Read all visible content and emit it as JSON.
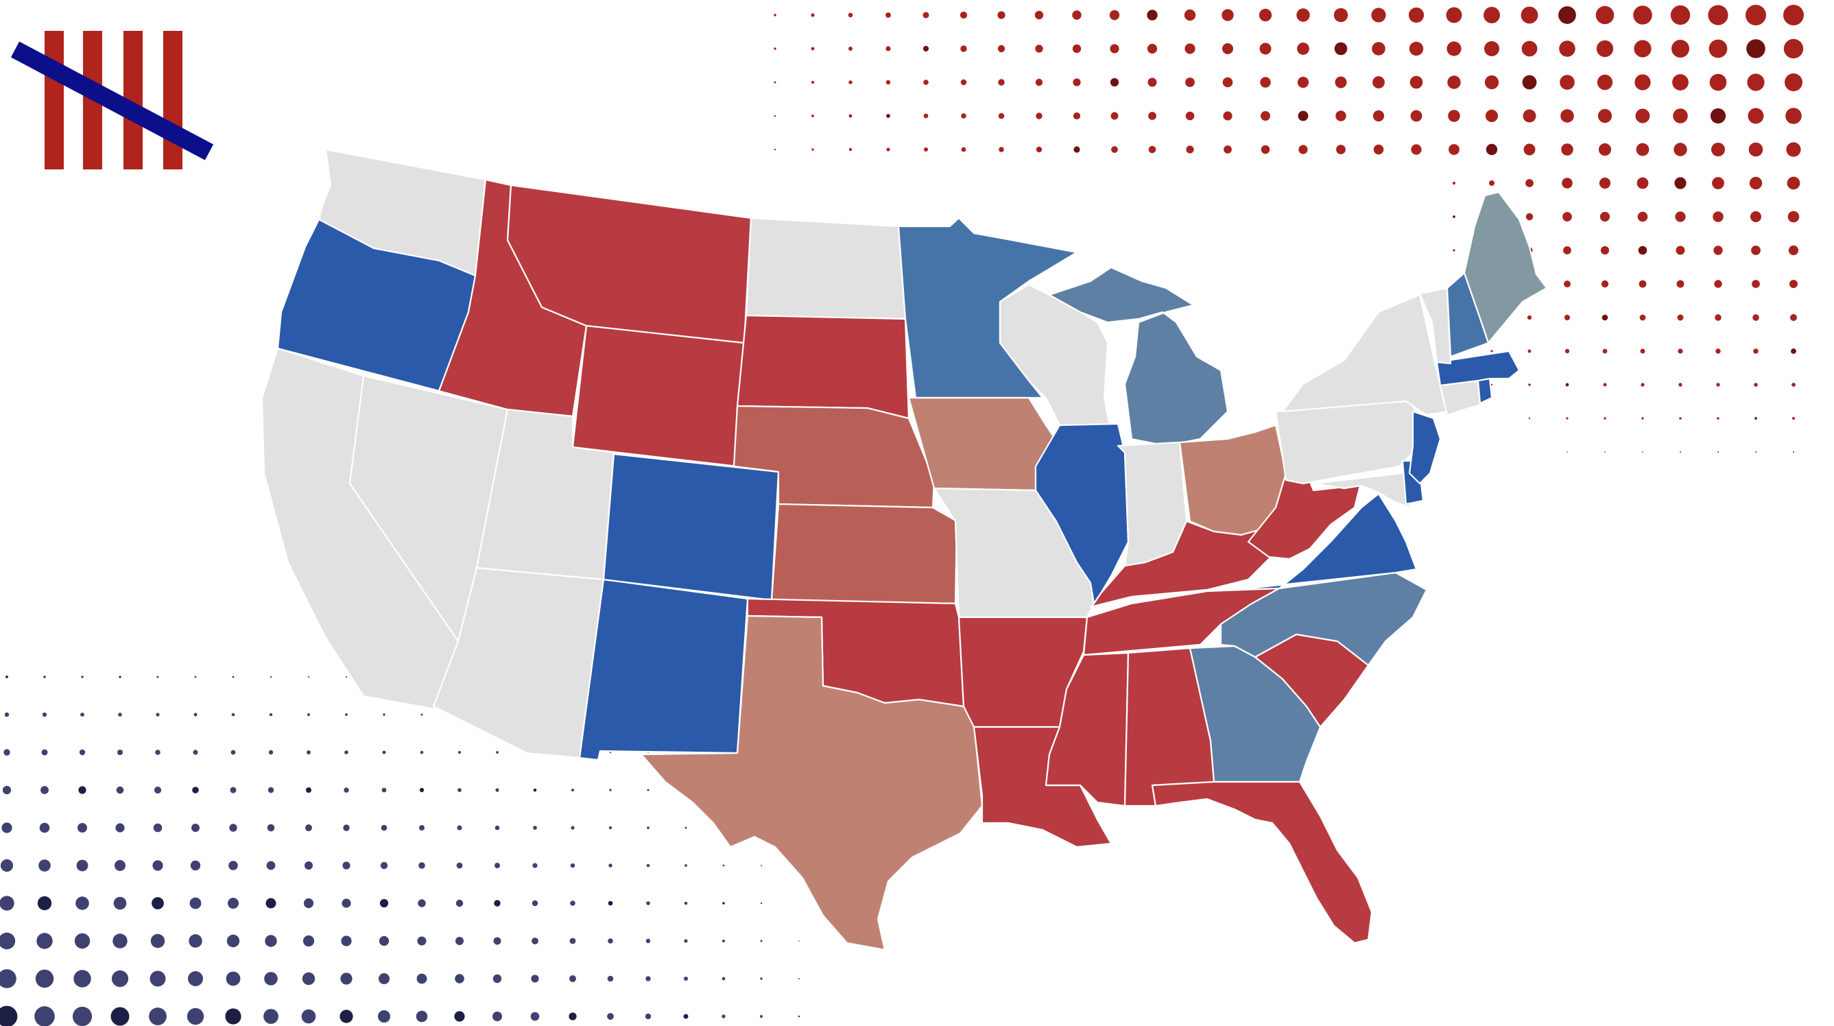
{
  "colors": {
    "background": "#ffffff",
    "dot_red": "#a8231e",
    "dot_red_dark": "#6f1210",
    "dot_navy": "#3f4270",
    "dot_navy_dark": "#1d1f45",
    "logo_stripe": "#b0241d",
    "logo_slash": "#0c0f8a",
    "no_data": "#e1e1e1"
  },
  "legend_categories": {
    "safe_r": "#b73b40",
    "likely_r": "#b86058",
    "lean_r": "#bf8272",
    "safe_d": "#2a5aa9",
    "likely_d": "#4674a8",
    "lean_d": "#5e80a5",
    "tossup_d": "#8299a2",
    "none": "#e1e1e1"
  },
  "logo": {
    "icon": "tally-marks-icon",
    "stripe_count": 4
  },
  "states": [
    {
      "code": "WA",
      "category": "none"
    },
    {
      "code": "OR",
      "category": "safe_d"
    },
    {
      "code": "CA",
      "category": "none"
    },
    {
      "code": "NV",
      "category": "none"
    },
    {
      "code": "ID",
      "category": "safe_r"
    },
    {
      "code": "MT",
      "category": "safe_r"
    },
    {
      "code": "WY",
      "category": "safe_r"
    },
    {
      "code": "UT",
      "category": "none"
    },
    {
      "code": "AZ",
      "category": "none"
    },
    {
      "code": "CO",
      "category": "safe_d"
    },
    {
      "code": "NM",
      "category": "safe_d"
    },
    {
      "code": "ND",
      "category": "none"
    },
    {
      "code": "SD",
      "category": "safe_r"
    },
    {
      "code": "NE",
      "category": "likely_r"
    },
    {
      "code": "KS",
      "category": "likely_r"
    },
    {
      "code": "OK",
      "category": "safe_r"
    },
    {
      "code": "TX",
      "category": "lean_r"
    },
    {
      "code": "MN",
      "category": "likely_d"
    },
    {
      "code": "IA",
      "category": "lean_r"
    },
    {
      "code": "MO",
      "category": "none"
    },
    {
      "code": "AR",
      "category": "safe_r"
    },
    {
      "code": "LA",
      "category": "safe_r"
    },
    {
      "code": "WI",
      "category": "none"
    },
    {
      "code": "IL",
      "category": "safe_d"
    },
    {
      "code": "MI",
      "category": "lean_d"
    },
    {
      "code": "IN",
      "category": "none"
    },
    {
      "code": "OH",
      "category": "lean_r"
    },
    {
      "code": "KY",
      "category": "safe_r"
    },
    {
      "code": "TN",
      "category": "safe_r"
    },
    {
      "code": "MS",
      "category": "safe_r"
    },
    {
      "code": "AL",
      "category": "safe_r"
    },
    {
      "code": "GA",
      "category": "lean_d"
    },
    {
      "code": "FL",
      "category": "safe_r"
    },
    {
      "code": "SC",
      "category": "safe_r"
    },
    {
      "code": "NC",
      "category": "lean_d"
    },
    {
      "code": "VA",
      "category": "safe_d"
    },
    {
      "code": "WV",
      "category": "safe_r"
    },
    {
      "code": "PA",
      "category": "none"
    },
    {
      "code": "NY",
      "category": "none"
    },
    {
      "code": "VT",
      "category": "none"
    },
    {
      "code": "NH",
      "category": "likely_d"
    },
    {
      "code": "ME",
      "category": "tossup_d"
    },
    {
      "code": "MA",
      "category": "safe_d"
    },
    {
      "code": "RI",
      "category": "safe_d"
    },
    {
      "code": "CT",
      "category": "none"
    },
    {
      "code": "NJ",
      "category": "safe_d"
    },
    {
      "code": "DE",
      "category": "safe_d"
    },
    {
      "code": "MD",
      "category": "none"
    }
  ]
}
